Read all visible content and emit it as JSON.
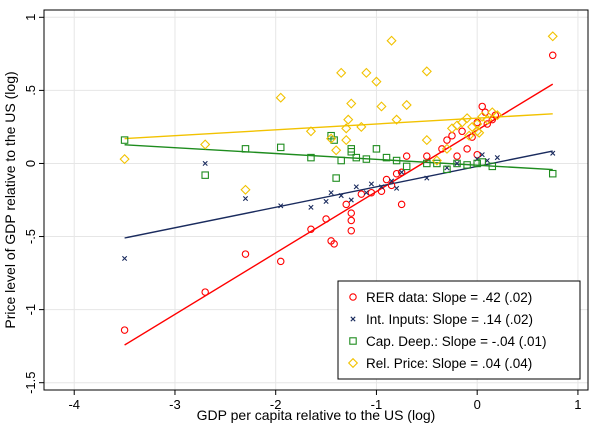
{
  "chart_data": {
    "type": "scatter",
    "xlabel": "GDP per capita relative to the US (log)",
    "ylabel": "Price level of GDP relative to the US (log)",
    "xlim": [
      -4.3,
      1.1
    ],
    "ylim": [
      -1.55,
      1.05
    ],
    "xticks": [
      -4,
      -3,
      -2,
      -1,
      0,
      1
    ],
    "yticks": [
      -1.5,
      -1,
      -0.5,
      0,
      0.5,
      1
    ],
    "xtick_labels": [
      "-4",
      "-3",
      "-2",
      "-1",
      "0",
      "1"
    ],
    "ytick_labels": [
      "-1.5",
      "-1",
      "-.5",
      "0",
      ".5",
      "1"
    ],
    "grid": true,
    "legend_position": "bottom-right",
    "series": [
      {
        "name": "RER data: Slope = .42 (.02)",
        "marker": "circle",
        "color": "#ff0000",
        "fit": {
          "slope": 0.42,
          "intercept": 0.228,
          "x_range": [
            -3.5,
            0.75
          ]
        },
        "points": [
          [
            -3.5,
            -1.14
          ],
          [
            -2.7,
            -0.88
          ],
          [
            -2.3,
            -0.62
          ],
          [
            -1.95,
            -0.67
          ],
          [
            -1.65,
            -0.45
          ],
          [
            -1.5,
            -0.38
          ],
          [
            -1.45,
            -0.53
          ],
          [
            -1.42,
            -0.55
          ],
          [
            -1.3,
            -0.28
          ],
          [
            -1.25,
            -0.46
          ],
          [
            -1.25,
            -0.39
          ],
          [
            -1.25,
            -0.34
          ],
          [
            -1.15,
            -0.21
          ],
          [
            -1.05,
            -0.2
          ],
          [
            -0.95,
            -0.19
          ],
          [
            -0.9,
            -0.11
          ],
          [
            -0.85,
            -0.15
          ],
          [
            -0.8,
            -0.07
          ],
          [
            -0.75,
            -0.28
          ],
          [
            -0.75,
            -0.06
          ],
          [
            -0.7,
            0.05
          ],
          [
            -0.5,
            0.05
          ],
          [
            -0.35,
            0.1
          ],
          [
            -0.3,
            0.16
          ],
          [
            -0.25,
            0.19
          ],
          [
            -0.2,
            0.05
          ],
          [
            -0.15,
            0.22
          ],
          [
            -0.1,
            0.1
          ],
          [
            -0.05,
            0.18
          ],
          [
            0.0,
            0.28
          ],
          [
            0.0,
            0.06
          ],
          [
            0.05,
            0.39
          ],
          [
            0.08,
            0.35
          ],
          [
            0.1,
            0.27
          ],
          [
            0.15,
            0.3
          ],
          [
            0.18,
            0.33
          ],
          [
            0.75,
            0.74
          ]
        ]
      },
      {
        "name": "Int. Inputs: Slope = .14 (.02)",
        "marker": "x",
        "color": "#1a2b5e",
        "fit": {
          "slope": 0.14,
          "intercept": -0.02,
          "x_range": [
            -3.5,
            0.75
          ]
        },
        "points": [
          [
            -3.5,
            -0.65
          ],
          [
            -2.7,
            0.0
          ],
          [
            -2.3,
            -0.24
          ],
          [
            -1.95,
            -0.29
          ],
          [
            -1.65,
            -0.3
          ],
          [
            -1.5,
            -0.26
          ],
          [
            -1.45,
            -0.2
          ],
          [
            -1.35,
            -0.22
          ],
          [
            -1.25,
            -0.25
          ],
          [
            -1.2,
            -0.16
          ],
          [
            -1.1,
            -0.2
          ],
          [
            -1.05,
            -0.14
          ],
          [
            -0.95,
            -0.16
          ],
          [
            -0.85,
            -0.12
          ],
          [
            -0.8,
            -0.17
          ],
          [
            -0.75,
            -0.06
          ],
          [
            -0.5,
            -0.1
          ],
          [
            -0.3,
            -0.03
          ],
          [
            -0.2,
            0.0
          ],
          [
            0.0,
            0.03
          ],
          [
            0.05,
            0.06
          ],
          [
            0.1,
            0.02
          ],
          [
            0.2,
            0.04
          ],
          [
            0.75,
            0.07
          ]
        ]
      },
      {
        "name": "Cap. Deep.: Slope = -.04 (.01)",
        "marker": "square",
        "color": "#1e8c1e",
        "fit": {
          "slope": -0.04,
          "intercept": -0.012,
          "x_range": [
            -3.5,
            0.75
          ]
        },
        "points": [
          [
            -3.5,
            0.16
          ],
          [
            -2.7,
            -0.08
          ],
          [
            -2.3,
            0.1
          ],
          [
            -1.95,
            0.11
          ],
          [
            -1.65,
            0.04
          ],
          [
            -1.45,
            0.19
          ],
          [
            -1.42,
            0.16
          ],
          [
            -1.4,
            -0.1
          ],
          [
            -1.35,
            0.02
          ],
          [
            -1.25,
            0.08
          ],
          [
            -1.25,
            0.1
          ],
          [
            -1.2,
            0.04
          ],
          [
            -1.1,
            0.03
          ],
          [
            -1.0,
            0.1
          ],
          [
            -0.9,
            0.04
          ],
          [
            -0.8,
            0.02
          ],
          [
            -0.7,
            -0.02
          ],
          [
            -0.5,
            0.0
          ],
          [
            -0.4,
            0.0
          ],
          [
            -0.3,
            -0.04
          ],
          [
            -0.2,
            0.0
          ],
          [
            -0.1,
            -0.01
          ],
          [
            0.0,
            0.0
          ],
          [
            0.05,
            0.01
          ],
          [
            0.15,
            -0.02
          ],
          [
            0.75,
            -0.07
          ]
        ]
      },
      {
        "name": "Rel. Price: Slope = .04 (.04)",
        "marker": "diamond",
        "color": "#f2c200",
        "fit": {
          "slope": 0.04,
          "intercept": 0.31,
          "x_range": [
            -3.5,
            0.75
          ]
        },
        "points": [
          [
            -3.5,
            0.03
          ],
          [
            -2.7,
            0.13
          ],
          [
            -2.3,
            -0.18
          ],
          [
            -1.95,
            0.45
          ],
          [
            -1.65,
            0.22
          ],
          [
            -1.45,
            0.17
          ],
          [
            -1.4,
            0.09
          ],
          [
            -1.35,
            0.62
          ],
          [
            -1.3,
            0.24
          ],
          [
            -1.3,
            0.16
          ],
          [
            -1.28,
            0.3
          ],
          [
            -1.25,
            0.41
          ],
          [
            -1.15,
            0.25
          ],
          [
            -1.1,
            0.62
          ],
          [
            -1.0,
            0.56
          ],
          [
            -0.95,
            0.39
          ],
          [
            -0.85,
            0.84
          ],
          [
            -0.8,
            0.3
          ],
          [
            -0.7,
            0.4
          ],
          [
            -0.5,
            0.63
          ],
          [
            -0.5,
            0.16
          ],
          [
            -0.4,
            0.02
          ],
          [
            -0.3,
            0.1
          ],
          [
            -0.25,
            0.24
          ],
          [
            -0.2,
            0.26
          ],
          [
            -0.15,
            0.28
          ],
          [
            -0.1,
            0.31
          ],
          [
            -0.08,
            0.19
          ],
          [
            -0.05,
            0.25
          ],
          [
            0.0,
            0.22
          ],
          [
            0.0,
            0.27
          ],
          [
            0.02,
            0.21
          ],
          [
            0.05,
            0.32
          ],
          [
            0.1,
            0.3
          ],
          [
            0.15,
            0.35
          ],
          [
            0.2,
            0.33
          ],
          [
            0.75,
            0.87
          ]
        ]
      }
    ]
  }
}
